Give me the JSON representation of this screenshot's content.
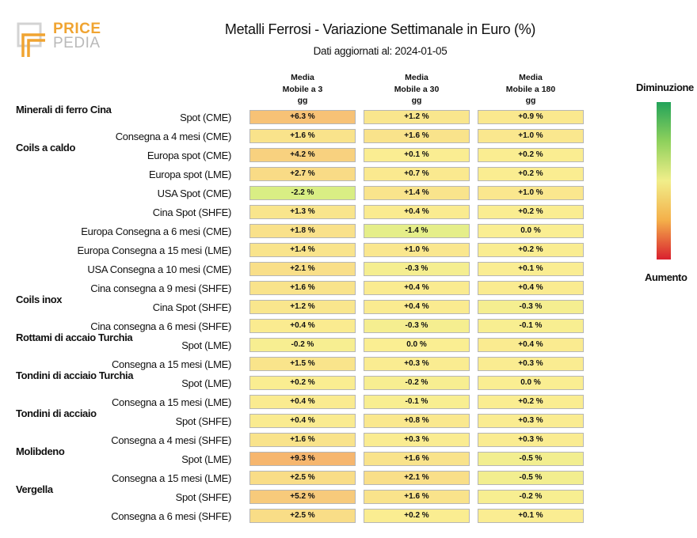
{
  "brand": {
    "price": "PRICE",
    "pedia": "PEDIA"
  },
  "colors": {
    "logo_orange": "#f0a431",
    "logo_gray": "#b9b9b9",
    "scale_green": "#23a35a",
    "scale_yellow": "#f1ee8a",
    "scale_red": "#d9202f"
  },
  "chart_data": {
    "type": "table",
    "title": "Metalli Ferrosi - Variazione Settimanale in Euro (%)",
    "subtitle": "Dati aggiornati al: 2024-01-05",
    "columns": [
      "Media\nMobile a 3\ngg",
      "Media\nMobile a 30\ngg",
      "Media\nMobile a 180\ngg"
    ],
    "legend": {
      "top": "Diminuzione",
      "bottom": "Aumento",
      "placement": "right"
    },
    "rows": [
      {
        "group": "Minerali di ferro Cina",
        "label": "Spot (CME)",
        "values": [
          "+6.3 %",
          "+1.2 %",
          "+0.9 %"
        ]
      },
      {
        "group": "",
        "label": "Consegna a 4 mesi (CME)",
        "values": [
          "+1.6 %",
          "+1.6 %",
          "+1.0 %"
        ]
      },
      {
        "group": "Coils a caldo",
        "label": "Europa spot (CME)",
        "values": [
          "+4.2 %",
          "+0.1 %",
          "+0.2 %"
        ]
      },
      {
        "group": "",
        "label": "Europa spot (LME)",
        "values": [
          "+2.7 %",
          "+0.7 %",
          "+0.2 %"
        ]
      },
      {
        "group": "",
        "label": "USA Spot (CME)",
        "values": [
          "-2.2 %",
          "+1.4 %",
          "+1.0 %"
        ]
      },
      {
        "group": "",
        "label": "Cina Spot (SHFE)",
        "values": [
          "+1.3 %",
          "+0.4 %",
          "+0.2 %"
        ]
      },
      {
        "group": "",
        "label": "Europa Consegna a 6 mesi (CME)",
        "values": [
          "+1.8 %",
          "-1.4 %",
          "0.0 %"
        ]
      },
      {
        "group": "",
        "label": "Europa Consegna a 15 mesi (LME)",
        "values": [
          "+1.4 %",
          "+1.0 %",
          "+0.2 %"
        ]
      },
      {
        "group": "",
        "label": "USA Consegna a 10 mesi (CME)",
        "values": [
          "+2.1 %",
          "-0.3 %",
          "+0.1 %"
        ]
      },
      {
        "group": "",
        "label": "Cina consegna a 9 mesi (SHFE)",
        "values": [
          "+1.6 %",
          "+0.4 %",
          "+0.4 %"
        ]
      },
      {
        "group": "Coils inox",
        "label": "Cina Spot (SHFE)",
        "values": [
          "+1.2 %",
          "+0.4 %",
          "-0.3 %"
        ]
      },
      {
        "group": "",
        "label": "Cina consegna a 6 mesi (SHFE)",
        "values": [
          "+0.4 %",
          "-0.3 %",
          "-0.1 %"
        ]
      },
      {
        "group": "Rottami di accaio Turchia",
        "label": "Spot (LME)",
        "values": [
          "-0.2 %",
          "0.0 %",
          "+0.4 %"
        ]
      },
      {
        "group": "",
        "label": "Consegna a 15 mesi (LME)",
        "values": [
          "+1.5 %",
          "+0.3 %",
          "+0.3 %"
        ]
      },
      {
        "group": "Tondini di acciaio Turchia",
        "label": "Spot (LME)",
        "values": [
          "+0.2 %",
          "-0.2 %",
          "0.0 %"
        ]
      },
      {
        "group": "",
        "label": "Consegna a 15 mesi (LME)",
        "values": [
          "+0.4 %",
          "-0.1 %",
          "+0.2 %"
        ]
      },
      {
        "group": "Tondini di acciaio",
        "label": "Spot (SHFE)",
        "values": [
          "+0.4 %",
          "+0.8 %",
          "+0.3 %"
        ]
      },
      {
        "group": "",
        "label": "Consegna a 4 mesi (SHFE)",
        "values": [
          "+1.6 %",
          "+0.3 %",
          "+0.3 %"
        ]
      },
      {
        "group": "Molibdeno",
        "label": "Spot (LME)",
        "values": [
          "+9.3 %",
          "+1.6 %",
          "-0.5 %"
        ]
      },
      {
        "group": "",
        "label": "Consegna a 15 mesi (LME)",
        "values": [
          "+2.5 %",
          "+2.1 %",
          "-0.5 %"
        ]
      },
      {
        "group": "Vergella",
        "label": "Spot (SHFE)",
        "values": [
          "+5.2 %",
          "+1.6 %",
          "-0.2 %"
        ]
      },
      {
        "group": "",
        "label": "Consegna a 6 mesi (SHFE)",
        "values": [
          "+2.5 %",
          "+0.2 %",
          "+0.1 %"
        ]
      }
    ]
  }
}
